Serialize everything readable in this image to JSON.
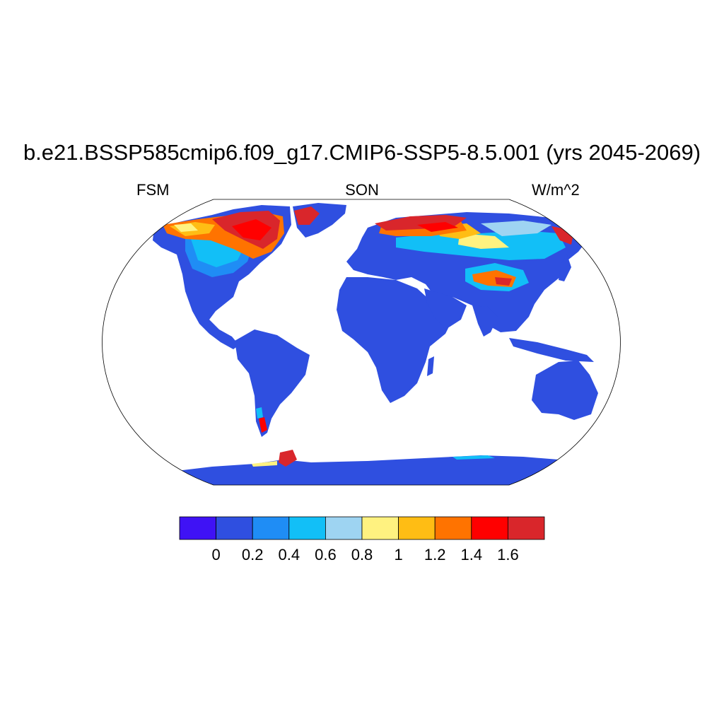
{
  "title": "b.e21.BSSP585cmip6.f09_g17.CMIP6-SSP5-8.5.001 (yrs 2045-2069)",
  "left_label": "FSM",
  "center_label": "SON",
  "right_label": "W/m^2",
  "colorbar": {
    "colors": [
      "#3f12f5",
      "#2f4fe0",
      "#1f8df5",
      "#12bff7",
      "#9ed4f2",
      "#fff280",
      "#ffbd14",
      "#ff7300",
      "#ff0000",
      "#d9262b"
    ],
    "tick_labels": [
      "0",
      "0.2",
      "0.4",
      "0.6",
      "0.8",
      "1",
      "1.2",
      "1.4",
      "1.6"
    ]
  },
  "colors": {
    "land_base": "#2f4fe0",
    "ocean": "#ffffff",
    "outline": "#000000"
  }
}
